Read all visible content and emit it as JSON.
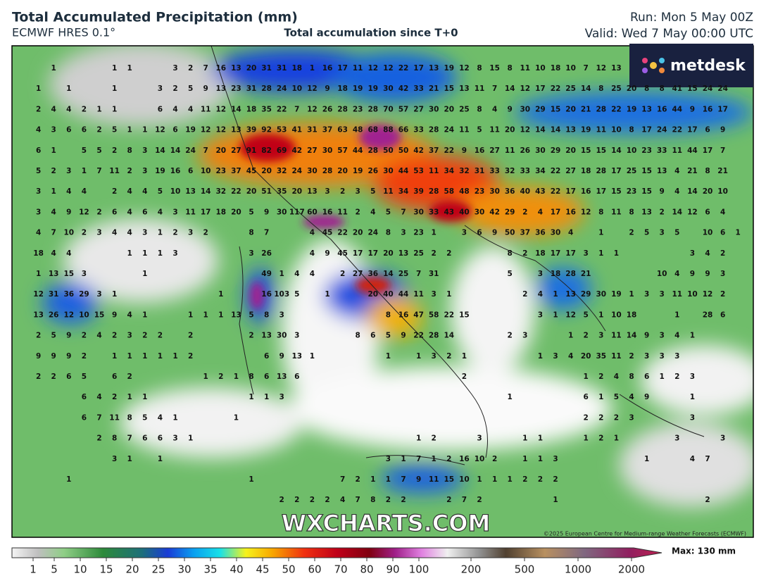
{
  "header": {
    "title": "Total Accumulated Precipitation (mm)",
    "model": "ECMWF HRES 0.1°",
    "subtitle": "Total accumulation since T+0",
    "run": "Run: Mon 5 May 00Z",
    "valid": "Valid: Wed 7 May 00:00 UTC"
  },
  "logo": "metdesk",
  "watermark": "WXCHARTS.COM",
  "copyright": "©2025 European Centre for Medium-range Weather Forecasts (ECMWF)",
  "colorbar": {
    "ticks": [
      1,
      5,
      10,
      15,
      20,
      25,
      30,
      35,
      40,
      45,
      50,
      60,
      70,
      80,
      90,
      100,
      200,
      500,
      1000,
      2000
    ],
    "max_label": "Max: 130 mm"
  },
  "map_labels": {
    "rows": [
      [
        null,
        null,
        1,
        null,
        null,
        null,
        1,
        1,
        null,
        null,
        3,
        2,
        7,
        16,
        13,
        20,
        31,
        31,
        18,
        1,
        16,
        17,
        11,
        12,
        12,
        22,
        17,
        13,
        19,
        12,
        8,
        15,
        8,
        11,
        10,
        18,
        10,
        7,
        12,
        13
      ],
      [
        null,
        1,
        null,
        1,
        null,
        null,
        1,
        null,
        null,
        3,
        2,
        5,
        9,
        13,
        23,
        31,
        28,
        24,
        10,
        12,
        9,
        18,
        19,
        19,
        30,
        42,
        33,
        21,
        15,
        13,
        11,
        7,
        14,
        12,
        17,
        22,
        25,
        14,
        8,
        25,
        20,
        8,
        8,
        41,
        15,
        24,
        24
      ],
      [
        null,
        2,
        4,
        4,
        2,
        1,
        1,
        null,
        null,
        6,
        4,
        4,
        11,
        12,
        14,
        18,
        35,
        22,
        7,
        12,
        26,
        28,
        23,
        28,
        70,
        57,
        27,
        30,
        20,
        25,
        8,
        4,
        9,
        30,
        29,
        15,
        20,
        21,
        28,
        22,
        19,
        13,
        16,
        44,
        9,
        16,
        17
      ],
      [
        null,
        4,
        3,
        6,
        6,
        2,
        5,
        1,
        1,
        12,
        6,
        19,
        12,
        12,
        13,
        39,
        92,
        53,
        41,
        31,
        37,
        63,
        48,
        68,
        88,
        66,
        33,
        28,
        24,
        11,
        5,
        11,
        20,
        12,
        14,
        14,
        13,
        19,
        11,
        10,
        8,
        17,
        24,
        22,
        17,
        6,
        9
      ],
      [
        null,
        6,
        1,
        null,
        5,
        5,
        2,
        8,
        3,
        14,
        14,
        24,
        7,
        20,
        27,
        91,
        82,
        69,
        42,
        27,
        30,
        57,
        44,
        28,
        50,
        50,
        42,
        37,
        22,
        9,
        16,
        27,
        11,
        26,
        30,
        29,
        20,
        15,
        15,
        14,
        10,
        23,
        33,
        11,
        44,
        17,
        7
      ],
      [
        null,
        5,
        2,
        3,
        1,
        7,
        11,
        2,
        3,
        19,
        16,
        6,
        10,
        23,
        37,
        45,
        20,
        32,
        24,
        30,
        28,
        20,
        19,
        26,
        30,
        44,
        53,
        11,
        34,
        32,
        31,
        33,
        32,
        33,
        34,
        22,
        27,
        18,
        28,
        17,
        25,
        15,
        13,
        4,
        21,
        8,
        21
      ],
      [
        null,
        3,
        1,
        4,
        4,
        null,
        2,
        4,
        4,
        5,
        10,
        13,
        14,
        32,
        22,
        20,
        51,
        35,
        20,
        13,
        3,
        2,
        3,
        5,
        11,
        34,
        39,
        28,
        58,
        48,
        23,
        30,
        36,
        40,
        43,
        22,
        17,
        16,
        17,
        15,
        23,
        15,
        9,
        4,
        14,
        20,
        10
      ],
      [
        null,
        3,
        4,
        9,
        12,
        2,
        6,
        4,
        6,
        4,
        3,
        11,
        17,
        18,
        20,
        5,
        9,
        30,
        117,
        60,
        16,
        11,
        2,
        4,
        5,
        7,
        30,
        33,
        43,
        40,
        30,
        42,
        29,
        2,
        4,
        17,
        16,
        12,
        8,
        11,
        8,
        13,
        2,
        14,
        12,
        6,
        4
      ],
      [
        null,
        4,
        7,
        10,
        2,
        3,
        4,
        4,
        3,
        1,
        2,
        3,
        2,
        null,
        null,
        8,
        7,
        null,
        null,
        4,
        45,
        22,
        20,
        24,
        8,
        3,
        23,
        1,
        null,
        3,
        6,
        9,
        50,
        37,
        36,
        30,
        4,
        null,
        1,
        null,
        2,
        5,
        3,
        5,
        null,
        10,
        6,
        1
      ],
      [
        null,
        18,
        4,
        4,
        null,
        null,
        null,
        1,
        1,
        1,
        3,
        null,
        null,
        null,
        null,
        3,
        26,
        null,
        null,
        4,
        9,
        45,
        17,
        17,
        20,
        13,
        25,
        2,
        2,
        null,
        null,
        null,
        8,
        2,
        18,
        17,
        17,
        3,
        1,
        1,
        null,
        null,
        null,
        null,
        3,
        4,
        2
      ],
      [
        null,
        1,
        13,
        15,
        3,
        null,
        null,
        null,
        1,
        null,
        null,
        null,
        null,
        null,
        null,
        null,
        49,
        1,
        4,
        4,
        null,
        2,
        27,
        36,
        14,
        25,
        7,
        31,
        null,
        null,
        null,
        null,
        5,
        null,
        3,
        18,
        28,
        21,
        null,
        null,
        null,
        null,
        10,
        4,
        9,
        9,
        3
      ],
      [
        null,
        12,
        31,
        36,
        29,
        3,
        1,
        null,
        null,
        null,
        null,
        null,
        null,
        1,
        null,
        null,
        16,
        103,
        5,
        null,
        1,
        null,
        null,
        20,
        40,
        44,
        11,
        3,
        1,
        null,
        null,
        null,
        null,
        2,
        4,
        1,
        13,
        29,
        30,
        19,
        1,
        3,
        3,
        11,
        10,
        12,
        2
      ],
      [
        null,
        13,
        26,
        12,
        10,
        15,
        9,
        4,
        1,
        null,
        null,
        1,
        1,
        1,
        13,
        5,
        8,
        3,
        null,
        null,
        null,
        null,
        null,
        null,
        8,
        16,
        47,
        58,
        22,
        15,
        null,
        null,
        null,
        null,
        3,
        1,
        12,
        5,
        1,
        10,
        18,
        null,
        null,
        1,
        null,
        28,
        6
      ],
      [
        null,
        2,
        5,
        9,
        2,
        4,
        2,
        3,
        2,
        2,
        null,
        2,
        null,
        null,
        null,
        2,
        13,
        30,
        3,
        null,
        null,
        null,
        8,
        6,
        5,
        9,
        22,
        28,
        14,
        null,
        null,
        null,
        2,
        3,
        null,
        null,
        1,
        2,
        3,
        11,
        14,
        9,
        3,
        4,
        1
      ],
      [
        null,
        9,
        9,
        9,
        2,
        null,
        1,
        1,
        1,
        1,
        1,
        2,
        null,
        null,
        null,
        null,
        6,
        9,
        13,
        1,
        null,
        null,
        null,
        null,
        1,
        null,
        1,
        3,
        2,
        1,
        null,
        null,
        null,
        null,
        1,
        3,
        4,
        20,
        35,
        11,
        2,
        3,
        3,
        3
      ],
      [
        null,
        2,
        2,
        6,
        5,
        null,
        6,
        2,
        null,
        null,
        null,
        null,
        1,
        2,
        1,
        8,
        6,
        13,
        6,
        null,
        null,
        null,
        null,
        null,
        null,
        null,
        null,
        null,
        null,
        2,
        null,
        null,
        null,
        null,
        null,
        null,
        null,
        1,
        2,
        4,
        8,
        6,
        1,
        2,
        3
      ],
      [
        null,
        null,
        null,
        null,
        6,
        4,
        2,
        1,
        1,
        null,
        null,
        null,
        null,
        null,
        null,
        1,
        1,
        3,
        null,
        null,
        null,
        null,
        null,
        null,
        null,
        null,
        null,
        null,
        null,
        null,
        null,
        null,
        1,
        null,
        null,
        null,
        null,
        6,
        1,
        5,
        4,
        9,
        null,
        null,
        1
      ],
      [
        null,
        null,
        null,
        null,
        6,
        7,
        11,
        8,
        5,
        4,
        1,
        null,
        null,
        null,
        1,
        null,
        null,
        null,
        null,
        null,
        null,
        null,
        null,
        null,
        null,
        null,
        null,
        null,
        null,
        null,
        null,
        null,
        null,
        null,
        null,
        null,
        null,
        2,
        2,
        2,
        3,
        null,
        null,
        null,
        3
      ],
      [
        null,
        null,
        null,
        null,
        null,
        2,
        8,
        7,
        6,
        6,
        3,
        1,
        null,
        null,
        null,
        null,
        null,
        null,
        null,
        null,
        null,
        null,
        null,
        null,
        null,
        null,
        1,
        2,
        null,
        null,
        3,
        null,
        null,
        1,
        1,
        null,
        null,
        1,
        2,
        1,
        null,
        null,
        null,
        3,
        null,
        null,
        3
      ],
      [
        null,
        null,
        null,
        null,
        null,
        null,
        3,
        1,
        null,
        1,
        null,
        null,
        null,
        null,
        null,
        null,
        null,
        null,
        null,
        null,
        null,
        null,
        null,
        null,
        3,
        1,
        7,
        1,
        2,
        16,
        10,
        2,
        null,
        1,
        1,
        3,
        null,
        null,
        null,
        null,
        null,
        1,
        null,
        null,
        4,
        7
      ],
      [
        null,
        null,
        null,
        1,
        null,
        null,
        null,
        null,
        null,
        null,
        null,
        null,
        null,
        null,
        null,
        1,
        null,
        null,
        null,
        null,
        null,
        7,
        2,
        1,
        1,
        7,
        9,
        11,
        15,
        10,
        1,
        1,
        1,
        2,
        2,
        2
      ],
      [
        null,
        null,
        null,
        null,
        null,
        null,
        null,
        null,
        null,
        null,
        null,
        null,
        null,
        null,
        null,
        null,
        null,
        2,
        2,
        2,
        2,
        4,
        7,
        8,
        2,
        2,
        null,
        null,
        2,
        7,
        2,
        null,
        null,
        null,
        null,
        1,
        null,
        null,
        null,
        null,
        null,
        null,
        null,
        null,
        null,
        2
      ]
    ]
  }
}
